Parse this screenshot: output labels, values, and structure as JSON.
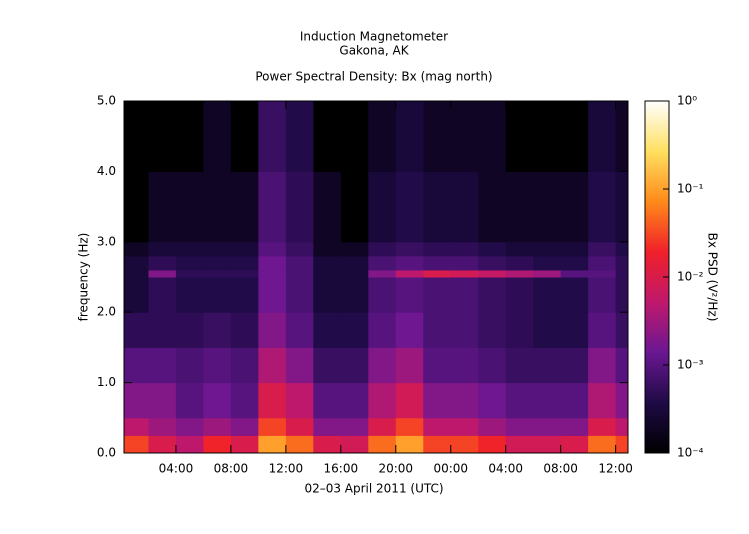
{
  "chart_data": {
    "type": "heatmap",
    "title": "Induction Magnetometer",
    "subtitle": "Gakona, AK",
    "plot_title": "Power Spectral Density: Bx (mag north)",
    "x_label": "02–03 April 2011 (UTC)",
    "y_label": "frequency (Hz)",
    "colorbar_label": "Bx PSD (V²/Hz)",
    "x_bins": [
      0.22,
      2,
      4,
      6,
      8,
      10,
      12,
      14,
      16,
      18,
      20,
      22,
      24,
      26,
      28,
      30,
      32,
      34,
      36,
      36.9
    ],
    "y_bins": [
      0,
      0.25,
      0.5,
      1,
      1.5,
      2,
      2.5,
      2.6,
      2.8,
      3,
      4,
      5
    ],
    "z": [
      [
        0.03,
        0.005,
        0.002,
        0.001,
        0.0005,
        0.0003,
        0.0003,
        0.0003,
        0.0002,
        0.0001,
        0.0001
      ],
      [
        0.01,
        0.003,
        0.002,
        0.001,
        0.0005,
        0.0005,
        0.002,
        0.0005,
        0.0003,
        0.0002,
        0.0001
      ],
      [
        0.005,
        0.002,
        0.001,
        0.0008,
        0.0005,
        0.0004,
        0.0005,
        0.0004,
        0.0003,
        0.0002,
        0.0001
      ],
      [
        0.02,
        0.003,
        0.0015,
        0.001,
        0.0006,
        0.0004,
        0.0005,
        0.0004,
        0.0003,
        0.0002,
        0.0002
      ],
      [
        0.01,
        0.002,
        0.001,
        0.0008,
        0.0005,
        0.0004,
        0.0005,
        0.0004,
        0.0003,
        0.0002,
        0.0001
      ],
      [
        0.1,
        0.03,
        0.01,
        0.004,
        0.002,
        0.0015,
        0.0015,
        0.0015,
        0.001,
        0.0008,
        0.0006
      ],
      [
        0.05,
        0.01,
        0.005,
        0.002,
        0.001,
        0.0008,
        0.0008,
        0.0008,
        0.0006,
        0.0005,
        0.0004
      ],
      [
        0.01,
        0.002,
        0.001,
        0.0006,
        0.0004,
        0.0003,
        0.0003,
        0.0003,
        0.0002,
        0.0002,
        0.0001
      ],
      [
        0.008,
        0.002,
        0.001,
        0.0006,
        0.0004,
        0.0003,
        0.0003,
        0.0003,
        0.0002,
        0.0001,
        0.0001
      ],
      [
        0.05,
        0.01,
        0.004,
        0.002,
        0.001,
        0.0008,
        0.002,
        0.0008,
        0.0005,
        0.0003,
        0.0002
      ],
      [
        0.1,
        0.03,
        0.008,
        0.003,
        0.0015,
        0.001,
        0.005,
        0.001,
        0.0006,
        0.0004,
        0.0003
      ],
      [
        0.03,
        0.005,
        0.002,
        0.001,
        0.0008,
        0.0008,
        0.01,
        0.0008,
        0.0005,
        0.0003,
        0.0002
      ],
      [
        0.03,
        0.005,
        0.002,
        0.001,
        0.0008,
        0.0008,
        0.008,
        0.0008,
        0.0005,
        0.0003,
        0.0002
      ],
      [
        0.02,
        0.003,
        0.0015,
        0.0008,
        0.0006,
        0.0006,
        0.006,
        0.0006,
        0.0004,
        0.0002,
        0.0002
      ],
      [
        0.008,
        0.002,
        0.001,
        0.0006,
        0.0005,
        0.0005,
        0.004,
        0.0005,
        0.0003,
        0.0002,
        0.0001
      ],
      [
        0.008,
        0.002,
        0.001,
        0.0006,
        0.0004,
        0.0004,
        0.003,
        0.0004,
        0.0003,
        0.0002,
        0.0001
      ],
      [
        0.01,
        0.002,
        0.001,
        0.0006,
        0.0004,
        0.0004,
        0.001,
        0.0004,
        0.0003,
        0.0002,
        0.0001
      ],
      [
        0.05,
        0.01,
        0.004,
        0.002,
        0.001,
        0.0008,
        0.001,
        0.0008,
        0.0006,
        0.0004,
        0.0003
      ],
      [
        0.03,
        0.005,
        0.002,
        0.001,
        0.0006,
        0.0005,
        0.0005,
        0.0005,
        0.0004,
        0.0003,
        0.0002
      ]
    ],
    "xlim": [
      0.22,
      36.9
    ],
    "xticks": [
      {
        "value": 4,
        "label": "04:00"
      },
      {
        "value": 8,
        "label": "08:00"
      },
      {
        "value": 12,
        "label": "12:00"
      },
      {
        "value": 16,
        "label": "16:00"
      },
      {
        "value": 20,
        "label": "20:00"
      },
      {
        "value": 24,
        "label": "00:00"
      },
      {
        "value": 28,
        "label": "04:00"
      },
      {
        "value": 32,
        "label": "08:00"
      },
      {
        "value": 36,
        "label": "12:00"
      }
    ],
    "ylim": [
      0,
      5
    ],
    "yticks": [
      {
        "value": 0,
        "label": "0.0"
      },
      {
        "value": 1,
        "label": "1.0"
      },
      {
        "value": 2,
        "label": "2.0"
      },
      {
        "value": 3,
        "label": "3.0"
      },
      {
        "value": 4,
        "label": "4.0"
      },
      {
        "value": 5,
        "label": "5.0"
      }
    ],
    "zlim": [
      0.0001,
      1
    ],
    "zscale": "log",
    "zticks": [
      {
        "value": 0.0001,
        "label": "10⁻⁴"
      },
      {
        "value": 0.001,
        "label": "10⁻³"
      },
      {
        "value": 0.01,
        "label": "10⁻²"
      },
      {
        "value": 0.1,
        "label": "10⁻¹"
      },
      {
        "value": 1,
        "label": "10⁰"
      }
    ],
    "colorscale": [
      "#000000",
      "#1e0a45",
      "#6a1792",
      "#c0186c",
      "#f0202a",
      "#ff8a1a",
      "#ffe060",
      "#ffffff"
    ]
  }
}
